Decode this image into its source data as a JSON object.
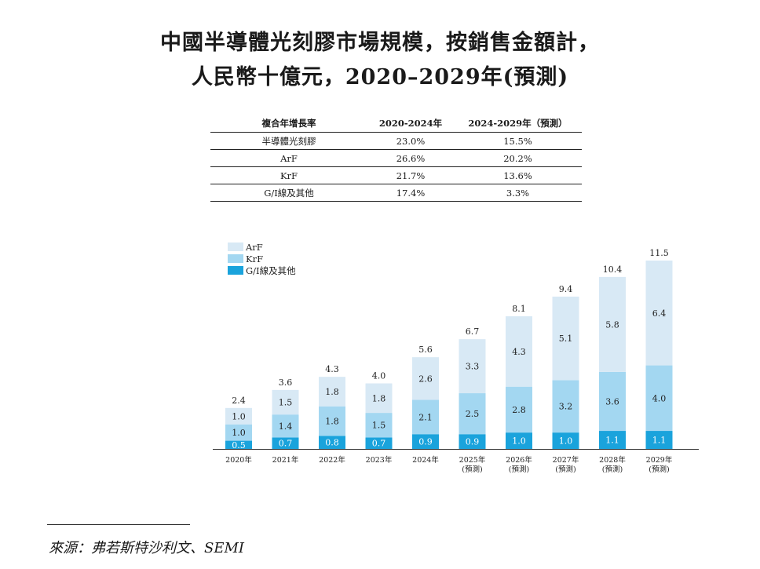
{
  "title": {
    "line1": "中國半導體光刻膠市場規模，按銷售金額計，",
    "line2": "人民幣十億元，2020–2029年(預測)"
  },
  "cagr_table": {
    "headers": [
      "複合年增長率",
      "2020-2024年",
      "2024-2029年（預測）"
    ],
    "rows": [
      [
        "半導體光刻膠",
        "23.0%",
        "15.5%"
      ],
      [
        "ArF",
        "26.6%",
        "20.2%"
      ],
      [
        "KrF",
        "21.7%",
        "13.6%"
      ],
      [
        "G/I線及其他",
        "17.4%",
        "3.3%"
      ]
    ]
  },
  "chart_data": {
    "type": "bar",
    "stacked": true,
    "categories": [
      "2020年",
      "2021年",
      "2022年",
      "2023年",
      "2024年",
      "2025年",
      "2026年",
      "2027年",
      "2028年",
      "2029年"
    ],
    "category_notes": [
      "",
      "",
      "",
      "",
      "",
      "(預測)",
      "(預測)",
      "(預測)",
      "(預測)",
      "(預測)"
    ],
    "series": [
      {
        "name": "G/I線及其他",
        "color": "#1aa3dc",
        "label_color": "#ffffff",
        "labels": [
          "0.5",
          "0.7",
          "0.8",
          "0.7",
          "0.9",
          "0.9",
          "1.0",
          "1.0",
          "1.1",
          "1.1"
        ],
        "values": [
          0.5,
          0.7,
          0.8,
          0.7,
          0.9,
          0.9,
          1.0,
          1.0,
          1.1,
          1.1
        ]
      },
      {
        "name": "KrF",
        "color": "#a3d7f1",
        "label_color": "#222222",
        "labels": [
          "1.0",
          "1.4",
          "1.8",
          "1.5",
          "2.1",
          "2.5",
          "2.8",
          "3.2",
          "3.6",
          "4.0"
        ],
        "values": [
          1.0,
          1.4,
          1.8,
          1.5,
          2.1,
          2.5,
          2.8,
          3.2,
          3.6,
          4.0
        ]
      },
      {
        "name": "ArF",
        "color": "#d8e9f5",
        "label_color": "#222222",
        "labels": [
          "1.0",
          "1.5",
          "1.8",
          "1.8",
          "2.6",
          "3.3",
          "4.3",
          "5.1",
          "5.8",
          "6.4"
        ],
        "values": [
          1.0,
          1.5,
          1.8,
          1.8,
          2.6,
          3.3,
          4.3,
          5.1,
          5.8,
          6.4
        ]
      }
    ],
    "totals": [
      "2.4",
      "3.6",
      "4.3",
      "4.0",
      "5.6",
      "6.7",
      "8.1",
      "9.4",
      "10.4",
      "11.5"
    ],
    "total_values": [
      2.4,
      3.6,
      4.3,
      4.0,
      5.6,
      6.7,
      8.1,
      9.4,
      10.4,
      11.5
    ],
    "legend_order": [
      2,
      1,
      0
    ],
    "legend_position": "top-left",
    "ylim": [
      0,
      11.5
    ]
  },
  "source": "來源：弗若斯特沙利文、SEMI"
}
